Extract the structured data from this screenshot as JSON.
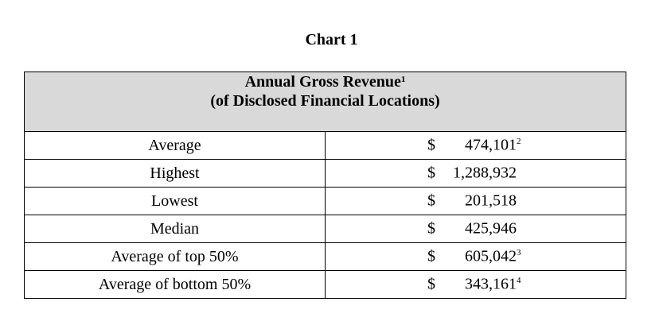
{
  "chart_title": "Chart 1",
  "table": {
    "header_line1": "Annual Gross Revenue",
    "header_line1_footnote": "1",
    "header_line2": "(of Disclosed Financial Locations)",
    "rows": [
      {
        "label": "Average",
        "currency": "$",
        "amount": "474,101",
        "footnote": "2"
      },
      {
        "label": "Highest",
        "currency": "$",
        "amount": "1,288,932",
        "footnote": ""
      },
      {
        "label": "Lowest",
        "currency": "$",
        "amount": "201,518",
        "footnote": ""
      },
      {
        "label": "Median",
        "currency": "$",
        "amount": "425,946",
        "footnote": ""
      },
      {
        "label": "Average of top 50%",
        "currency": "$",
        "amount": "605,042",
        "footnote": "3"
      },
      {
        "label": "Average of bottom 50%",
        "currency": "$",
        "amount": "343,161",
        "footnote": "4"
      }
    ]
  }
}
